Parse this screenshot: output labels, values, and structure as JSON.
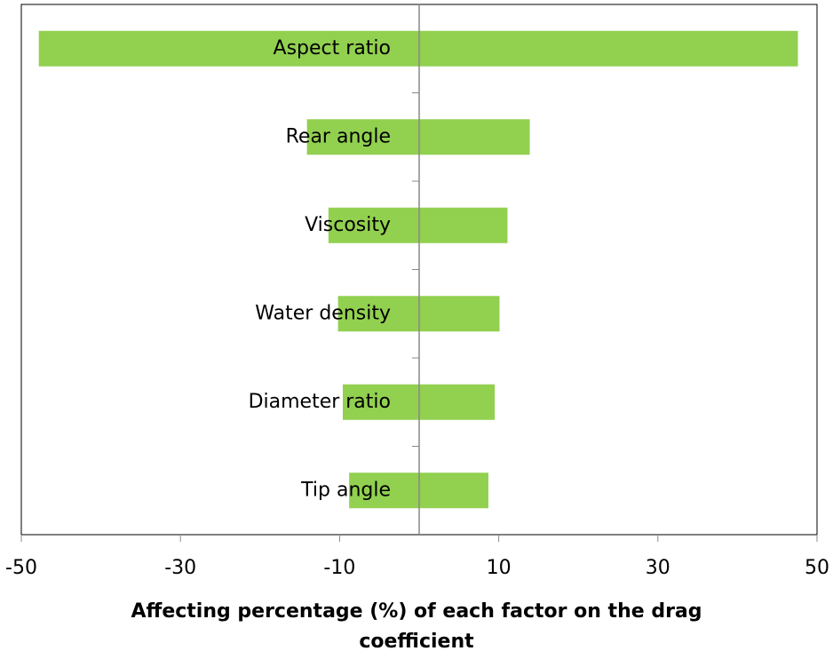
{
  "chart_data": {
    "type": "tornado",
    "categories": [
      "Aspect ratio",
      "Rear angle",
      "Viscosity",
      "Water density",
      "Diameter ratio",
      "Tip angle"
    ],
    "series": [
      {
        "color": "#92d050",
        "values": [
          -47.8,
          -14.1,
          -11.4,
          -10.2,
          -9.6,
          -8.8
        ]
      },
      {
        "color": "#92d050",
        "values": [
          47.6,
          13.9,
          11.1,
          10.1,
          9.5,
          8.7
        ]
      }
    ],
    "xlim": [
      -50,
      50
    ],
    "xticks": [
      -50,
      -30,
      -10,
      10,
      30,
      50
    ],
    "xlabel": "Affecting percentage (%) of each factor on the drag coefficient"
  }
}
